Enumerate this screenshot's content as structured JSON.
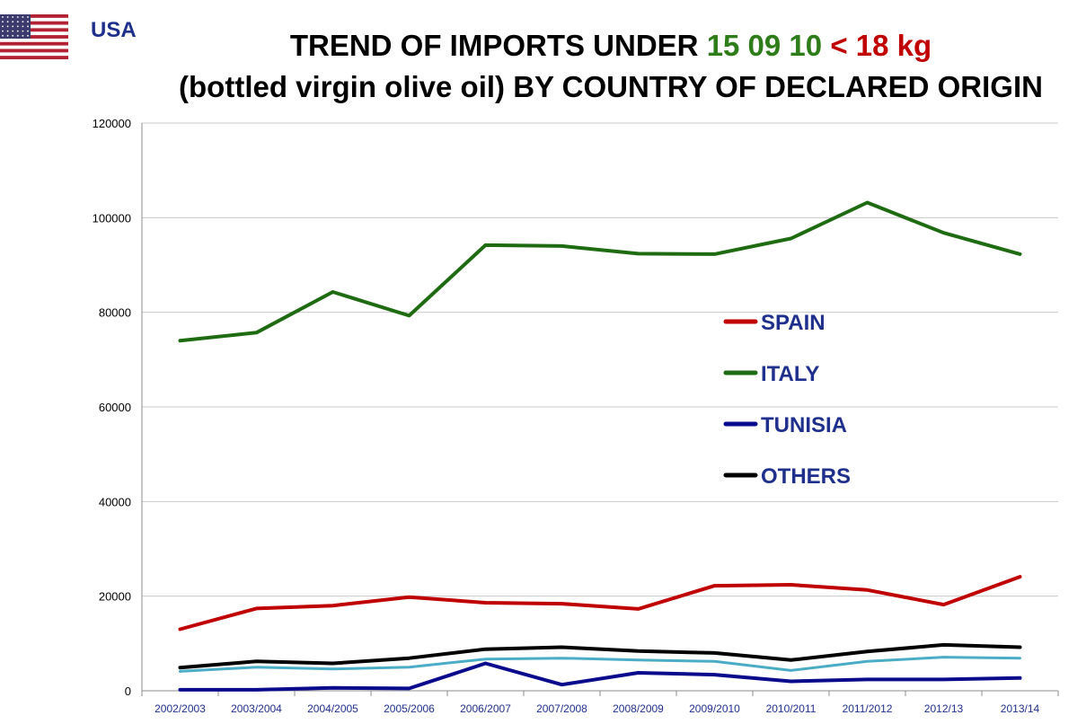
{
  "header": {
    "country": "USA",
    "title_part1": "TREND OF IMPORTS UNDER ",
    "title_code": "15 09 10",
    "title_kg": " < 18 kg",
    "title_line2": "(bottled virgin olive oil)  BY COUNTRY OF DECLARED ORIGIN"
  },
  "colors": {
    "code": "#2e7d1a",
    "kg": "#c00000",
    "country": "#1f2f8c"
  },
  "chart_data": {
    "type": "line",
    "categories": [
      "2002/2003",
      "2003/2004",
      "2004/2005",
      "2005/2006",
      "2006/2007",
      "2007/2008",
      "2008/2009",
      "2009/2010",
      "2010/2011",
      "2011/2012",
      "2012/13",
      "2013/14"
    ],
    "ylim": [
      0,
      120000
    ],
    "yticks": [
      0,
      20000,
      40000,
      60000,
      80000,
      100000,
      120000
    ],
    "ytick_labels": [
      "0",
      "20000",
      "40000",
      "60000",
      "80000",
      "100000",
      "120000"
    ],
    "grid": true,
    "legend_position": "center-right",
    "series": [
      {
        "name": "SPAIN",
        "color": "#c00000",
        "legend": true,
        "values": [
          13000,
          17400,
          18000,
          19800,
          18600,
          18400,
          17300,
          22200,
          22400,
          21300,
          18200,
          24100
        ]
      },
      {
        "name": "ITALY",
        "color": "#1e6b12",
        "legend": true,
        "values": [
          74000,
          75700,
          84300,
          79300,
          94200,
          94000,
          92400,
          92300,
          95600,
          103200,
          96800,
          92300
        ]
      },
      {
        "name": "TUNISIA",
        "color": "#0a0a8c",
        "legend": true,
        "values": [
          200,
          200,
          600,
          500,
          5800,
          1300,
          3800,
          3400,
          2000,
          2400,
          2400,
          2700
        ]
      },
      {
        "name": "OTHERS",
        "color": "#000000",
        "legend": true,
        "values": [
          4900,
          6200,
          5800,
          6900,
          8800,
          9200,
          8400,
          8000,
          6500,
          8300,
          9700,
          9200
        ]
      },
      {
        "color": "#4bacc6",
        "legend": false,
        "values": [
          4100,
          5000,
          4600,
          5000,
          6700,
          6900,
          6500,
          6200,
          4300,
          6200,
          7100,
          6900
        ]
      }
    ]
  }
}
